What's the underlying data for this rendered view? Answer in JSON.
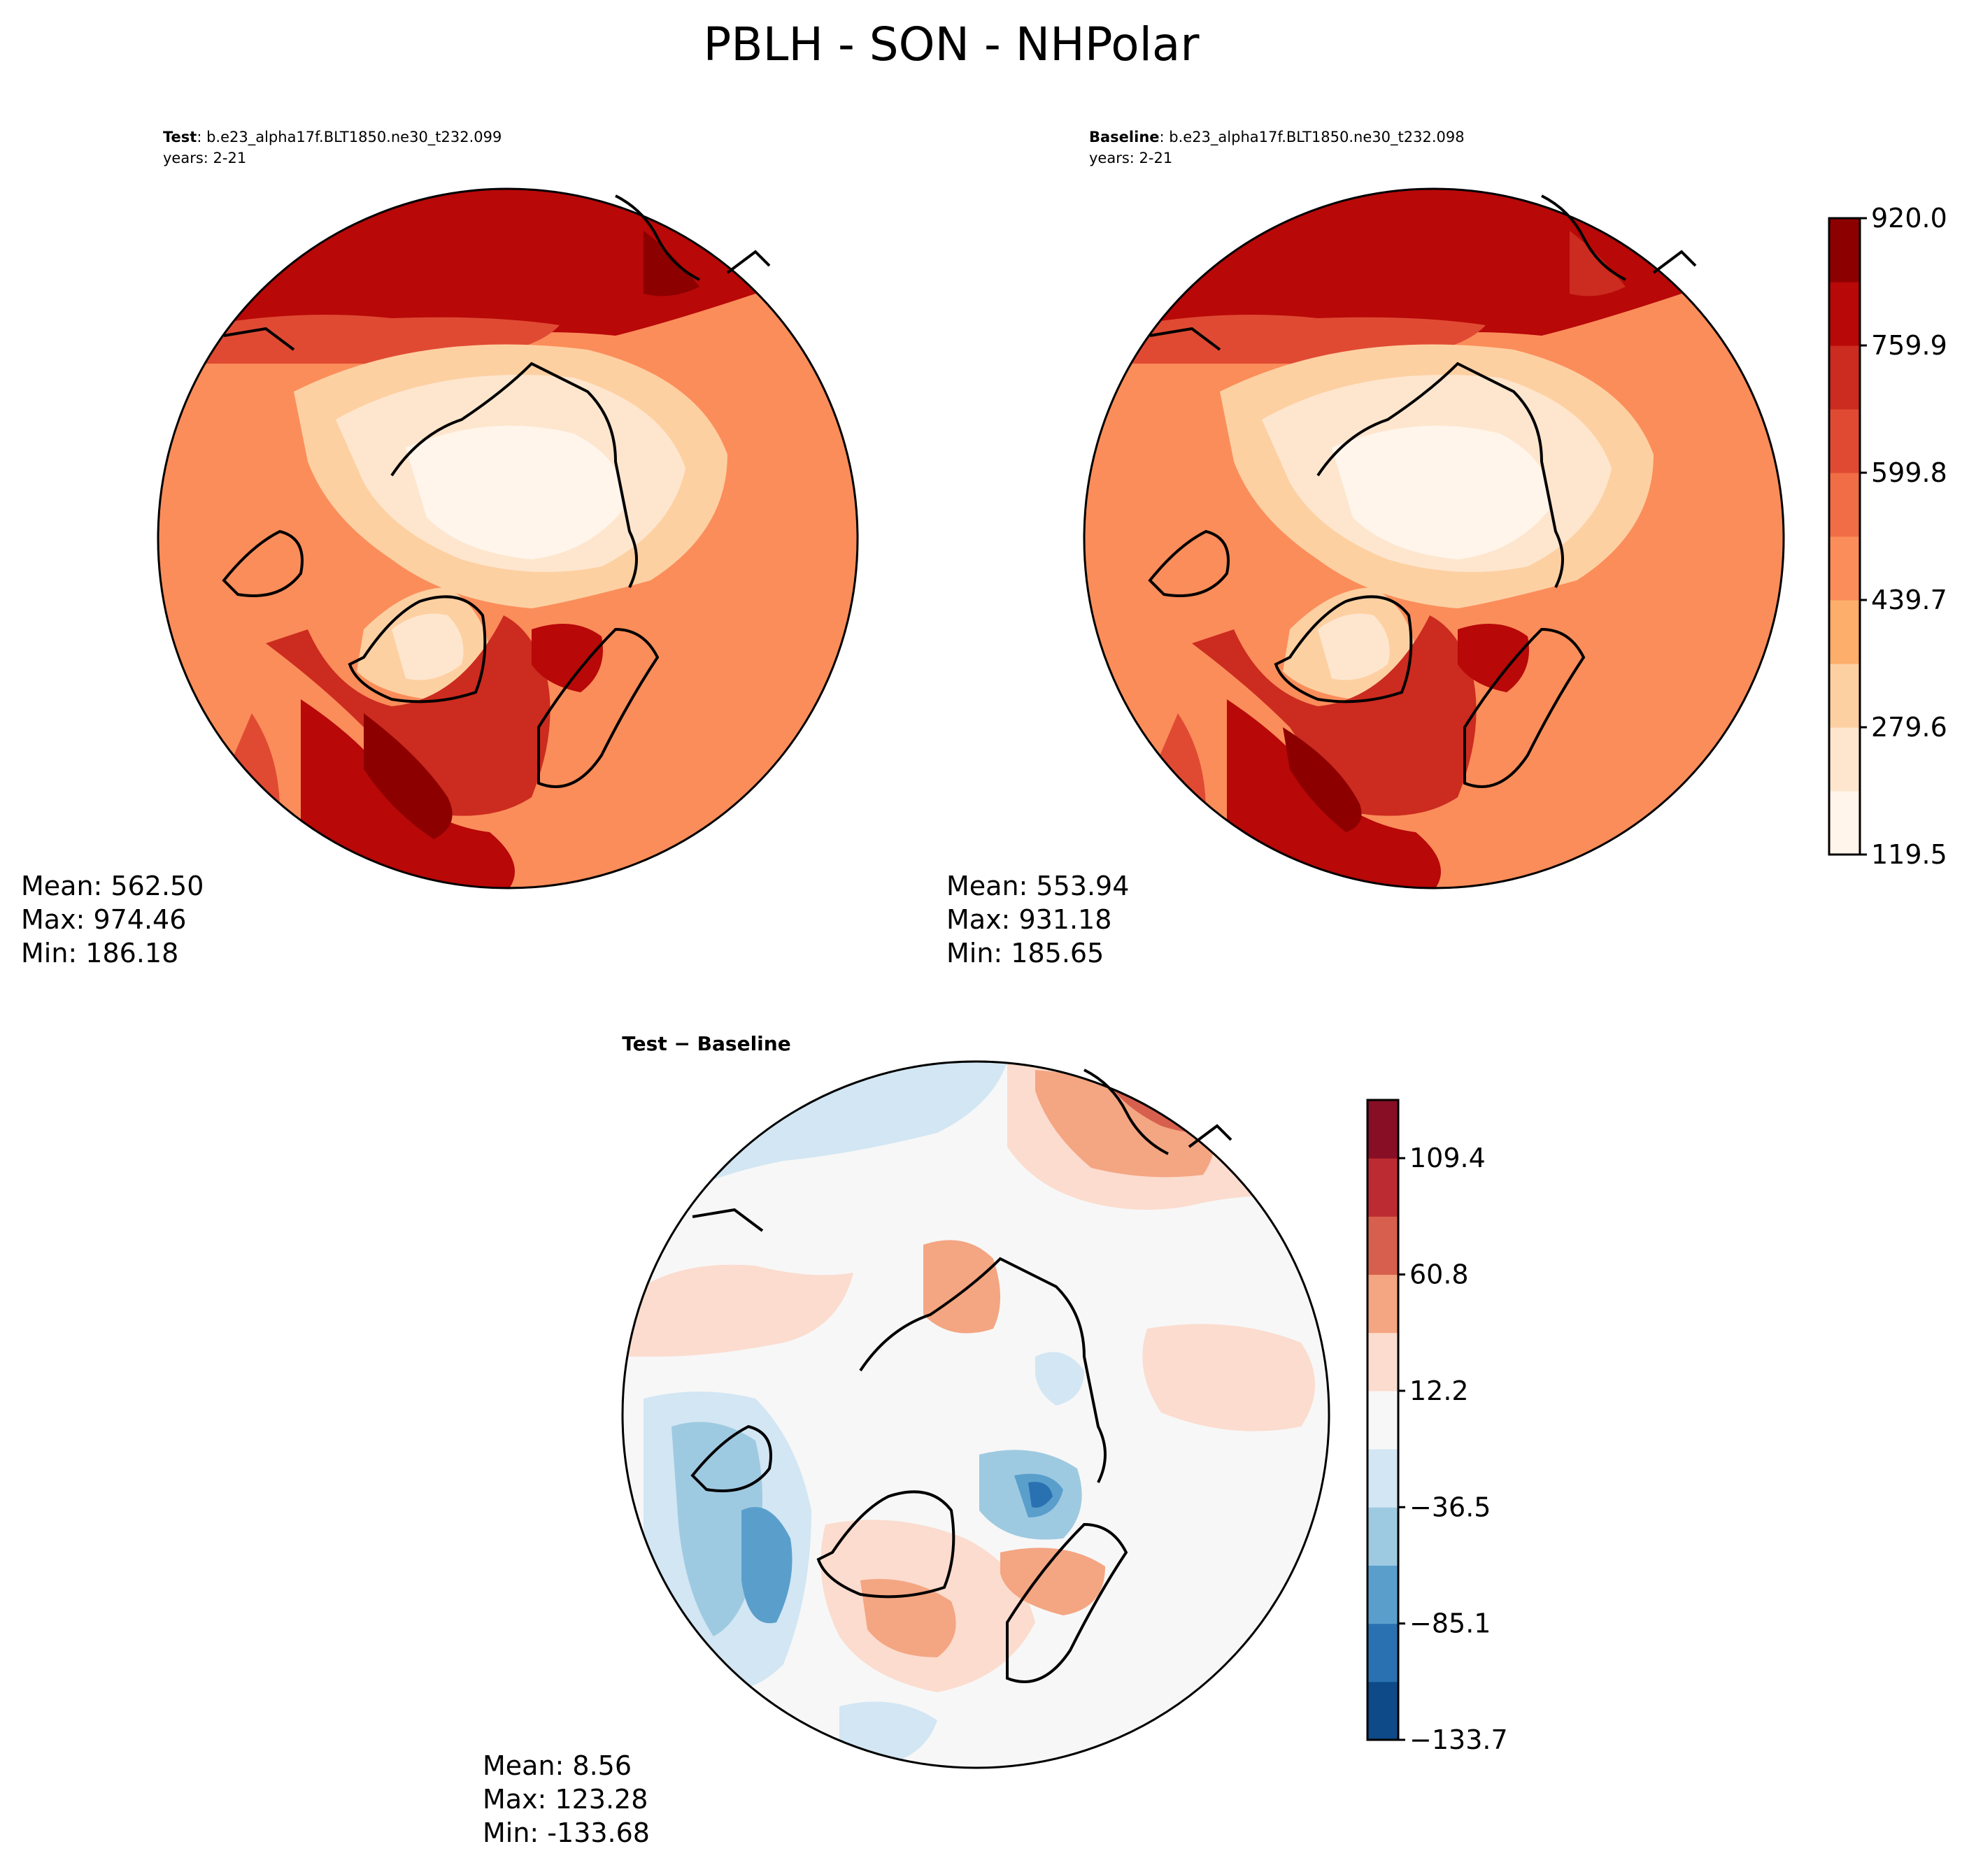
{
  "figure": {
    "title": "PBLH - SON - NHPolar"
  },
  "panels": {
    "test": {
      "label_bold": "Test",
      "label_rest": ": b.e23_alpha17f.BLT1850.ne30_t232.099",
      "years": "years: 2-21",
      "stats": {
        "mean": "Mean: 562.50",
        "max": "Max: 974.46",
        "min": "Min: 186.18"
      }
    },
    "baseline": {
      "label_bold": "Baseline",
      "label_rest": ": b.e23_alpha17f.BLT1850.ne30_t232.098",
      "years": "years: 2-21",
      "stats": {
        "mean": "Mean: 553.94",
        "max": "Max: 931.18",
        "min": "Min: 185.65"
      }
    },
    "diff": {
      "label": "Test − Baseline",
      "stats": {
        "mean": "Mean:  8.56",
        "max": "Max: 123.28",
        "min": "Min: -133.68"
      }
    }
  },
  "colorbars": {
    "main": {
      "tick_labels": [
        "119.5",
        "279.6",
        "439.7",
        "599.8",
        "759.9",
        "920.0"
      ],
      "colors": [
        "#fff5eb",
        "#fee6ce",
        "#fdd0a2",
        "#fdae6b",
        "#fb8d5a",
        "#f16d45",
        "#e04a33",
        "#cc2b1f",
        "#b80808",
        "#8d0000"
      ]
    },
    "diff": {
      "tick_labels": [
        "−133.7",
        "−85.1",
        "−36.5",
        "12.2",
        "60.8",
        "109.4"
      ],
      "colors": [
        "#0d4a87",
        "#2a71b2",
        "#5a9fcc",
        "#9ecae1",
        "#d2e6f3",
        "#f7f7f7",
        "#fbdcce",
        "#f4a582",
        "#d6604d",
        "#bd2b32",
        "#870e25"
      ]
    }
  }
}
